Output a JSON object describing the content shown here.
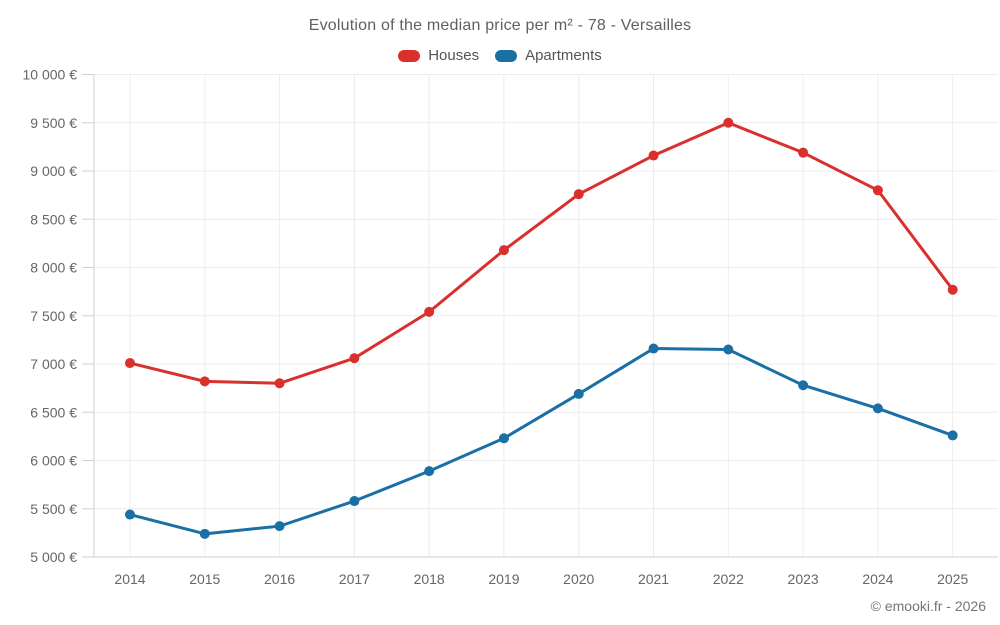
{
  "chart": {
    "title": "Evolution of the median price per m² - 78 - Versailles",
    "footer": "© emooki.fr - 2026"
  },
  "chart_data": {
    "type": "line",
    "title": "Evolution of the median price per m² - 78 - Versailles",
    "categories": [
      "2014",
      "2015",
      "2016",
      "2017",
      "2018",
      "2019",
      "2020",
      "2021",
      "2022",
      "2023",
      "2024",
      "2025"
    ],
    "series": [
      {
        "name": "Houses",
        "color": "#d9302e",
        "values": [
          7010,
          6820,
          6800,
          7060,
          7540,
          8180,
          8760,
          9160,
          9500,
          9190,
          8800,
          7770
        ]
      },
      {
        "name": "Apartments",
        "color": "#1a6fa5",
        "values": [
          5440,
          5240,
          5320,
          5580,
          5890,
          6230,
          6690,
          7160,
          7150,
          6780,
          6540,
          6260
        ]
      }
    ],
    "xlabel": "",
    "ylabel": "",
    "ylim": [
      5000,
      10000
    ],
    "ytick_step": 500,
    "yticks": [
      {
        "value": 5000,
        "label": "5 000 €"
      },
      {
        "value": 5500,
        "label": "5 500 €"
      },
      {
        "value": 6000,
        "label": "6 000 €"
      },
      {
        "value": 6500,
        "label": "6 500 €"
      },
      {
        "value": 7000,
        "label": "7 000 €"
      },
      {
        "value": 7500,
        "label": "7 500 €"
      },
      {
        "value": 8000,
        "label": "8 000 €"
      },
      {
        "value": 8500,
        "label": "8 500 €"
      },
      {
        "value": 9000,
        "label": "9 000 €"
      },
      {
        "value": 9500,
        "label": "9 500 €"
      },
      {
        "value": 10000,
        "label": "10 000 €"
      }
    ],
    "grid": true,
    "legend_position": "top",
    "colors": {
      "grid_line": "#ececec",
      "axis_line": "#cfcfcf",
      "tick_text": "#666666",
      "title_text": "#606060",
      "footer_text": "#757575"
    }
  }
}
